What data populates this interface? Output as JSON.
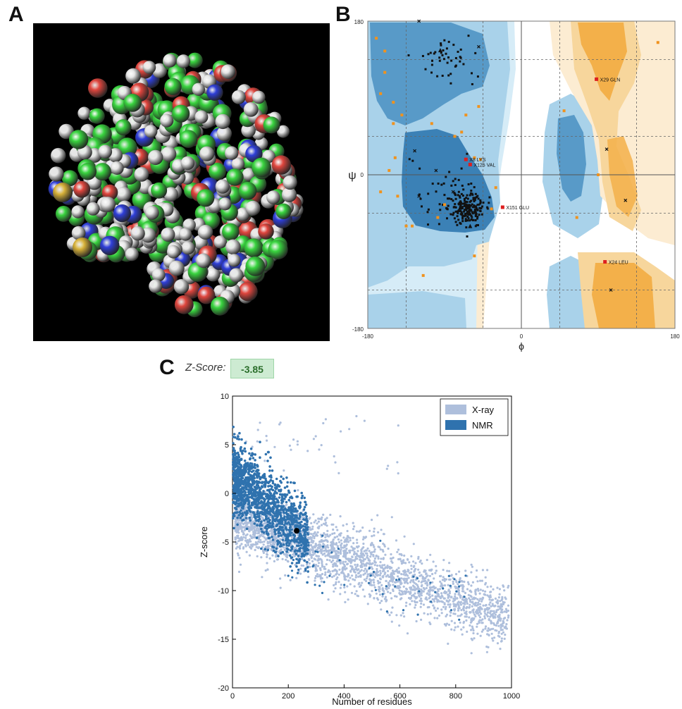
{
  "panels": {
    "a": "A",
    "b": "B",
    "c": "C"
  },
  "structure_colors": {
    "carbon": "#39d43f",
    "hydrogen": "#e6e6e6",
    "oxygen": "#e0463e",
    "nitrogen": "#2f3fd8",
    "sulfur": "#d8b23a"
  },
  "ramachandran": {
    "ticks": {
      "x_left": "-180",
      "x_zero": "0",
      "x_right": "180",
      "y_top": "180",
      "y_zero": "0",
      "y_bottom": "-180"
    },
    "xlabel": "ϕ",
    "ylabel": "ψ",
    "labels": [
      {
        "text": "X8 LYS",
        "phi": -65,
        "psi": 18
      },
      {
        "text": "X125 VAL",
        "phi": -60,
        "psi": 12
      },
      {
        "text": "X151 GLU",
        "phi": -22,
        "psi": -38
      },
      {
        "text": "X29 GLN",
        "phi": 88,
        "psi": 112
      },
      {
        "text": "X24 LEU",
        "phi": 98,
        "psi": -102
      }
    ],
    "colors": {
      "favored_blue": "#4a90c2",
      "allowed_blue": "#a9d2ea",
      "generous_blue": "#d6ecf7",
      "favored_orange": "#f3b04a",
      "allowed_orange": "#f7d69c",
      "generous_orange": "#fcecd2",
      "outlier": "#dd1f1f",
      "glycine": "#f0921d"
    }
  },
  "zscore": {
    "label": "Z-Score:",
    "value": "-3.85"
  },
  "chart_data": {
    "type": "scatter",
    "xlabel": "Number of residues",
    "ylabel": "Z-score",
    "xlim": [
      0,
      1000
    ],
    "ylim": [
      -20,
      10
    ],
    "xticks": [
      "0",
      "200",
      "400",
      "600",
      "800",
      "1000"
    ],
    "yticks": [
      "10",
      "5",
      "0",
      "-5",
      "-10",
      "-15",
      "-20"
    ],
    "legend_position": "top-right",
    "series": [
      {
        "name": "X-ray",
        "color": "#aebfdc"
      },
      {
        "name": "NMR",
        "color": "#2f72ae"
      }
    ],
    "highlight_point": {
      "x": 230,
      "y": -3.85
    }
  }
}
